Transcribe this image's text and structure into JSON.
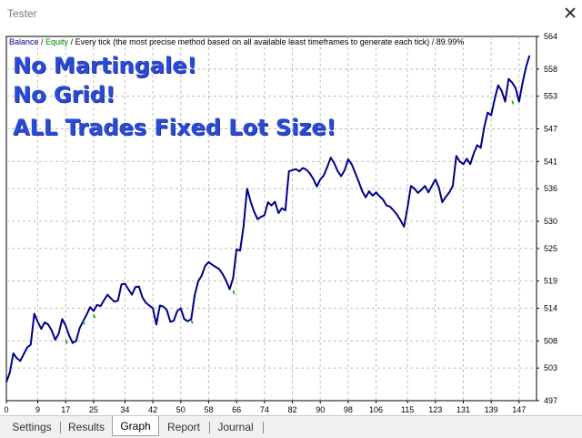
{
  "window": {
    "title": "Tester"
  },
  "header": {
    "balance_label": "Balance",
    "sep1": " / ",
    "equity_label": "Equity",
    "rest": " / Every tick (the most precise method based on all available least timeframes to generate each tick) / 89.99%"
  },
  "overlay": {
    "line1": "No Martingale!",
    "line2": "No Grid!",
    "line3": "ALL Trades Fixed Lot Size!"
  },
  "tabs": [
    {
      "label": "Settings",
      "active": false
    },
    {
      "label": "Results",
      "active": false
    },
    {
      "label": "Graph",
      "active": true
    },
    {
      "label": "Report",
      "active": false
    },
    {
      "label": "Journal",
      "active": false
    }
  ],
  "colors": {
    "balance": "#00008b",
    "equity": "#00a000",
    "grid": "#bdbdbd",
    "overlay_text": "#2b4bd6"
  },
  "chart_data": {
    "type": "line",
    "x_ticks": [
      "0",
      "9",
      "17",
      "25",
      "34",
      "42",
      "50",
      "58",
      "66",
      "74",
      "82",
      "90",
      "98",
      "106",
      "115",
      "123",
      "131",
      "139",
      "147"
    ],
    "y_ticks": [
      "497",
      "503",
      "508",
      "514",
      "519",
      "525",
      "530",
      "536",
      "541",
      "547",
      "553",
      "558",
      "564"
    ],
    "xlim": [
      0,
      152
    ],
    "ylim": [
      497,
      564
    ],
    "grid": true,
    "series": [
      {
        "name": "Balance",
        "x": [
          0,
          1,
          2,
          3,
          4,
          5,
          6,
          7,
          8,
          9,
          10,
          11,
          12,
          13,
          14,
          15,
          16,
          17,
          18,
          19,
          20,
          21,
          22,
          23,
          24,
          25,
          26,
          27,
          28,
          29,
          30,
          31,
          32,
          33,
          34,
          35,
          36,
          37,
          38,
          39,
          40,
          41,
          42,
          43,
          44,
          45,
          46,
          47,
          48,
          49,
          50,
          51,
          52,
          53,
          54,
          55,
          56,
          57,
          58,
          59,
          60,
          61,
          62,
          63,
          64,
          65,
          66,
          67,
          68,
          69,
          70,
          71,
          72,
          73,
          74,
          75,
          76,
          77,
          78,
          79,
          80,
          81,
          82,
          83,
          84,
          85,
          86,
          87,
          88,
          89,
          90,
          91,
          92,
          93,
          94,
          95,
          96,
          97,
          98,
          99,
          100,
          101,
          102,
          103,
          104,
          105,
          106,
          107,
          108,
          109,
          110,
          111,
          112,
          113,
          114,
          115,
          116,
          117,
          118,
          119,
          120,
          121,
          122,
          123,
          124,
          125,
          126,
          127,
          128,
          129,
          130,
          131,
          132,
          133,
          134,
          135,
          136,
          137,
          138,
          139,
          140,
          141,
          142,
          143,
          144,
          145,
          146,
          147,
          148,
          149,
          150
        ],
        "values": [
          500.4,
          502.2,
          505.7,
          504.8,
          504.3,
          505.6,
          506.8,
          507.3,
          513.0,
          511.5,
          510.2,
          511.4,
          511.0,
          509.9,
          508.2,
          509.3,
          512.0,
          510.8,
          509.0,
          507.6,
          508.0,
          510.3,
          511.6,
          512.8,
          514.2,
          513.5,
          514.6,
          514.4,
          515.5,
          516.5,
          515.8,
          515.2,
          515.4,
          518.4,
          518.5,
          517.5,
          516.5,
          517.9,
          518.0,
          516.0,
          515.0,
          514.5,
          514.0,
          511.0,
          514.5,
          514.3,
          513.7,
          511.5,
          511.7,
          513.5,
          514.0,
          512.0,
          511.6,
          512.0,
          516.4,
          519.0,
          520.0,
          521.8,
          522.5,
          522.0,
          521.6,
          521.2,
          520.3,
          519.1,
          517.5,
          519.5,
          524.8,
          524.6,
          529.0,
          536.0,
          533.7,
          531.8,
          530.4,
          530.8,
          531.1,
          533.5,
          532.9,
          533.6,
          531.5,
          532.4,
          532.0,
          539.2,
          539.4,
          539.6,
          539.2,
          539.8,
          539.5,
          538.8,
          537.8,
          536.4,
          537.7,
          538.4,
          540.0,
          541.7,
          540.7,
          539.2,
          538.3,
          539.4,
          541.4,
          540.5,
          538.9,
          537.3,
          535.6,
          534.4,
          535.5,
          534.7,
          535.3,
          534.6,
          534.0,
          532.9,
          532.7,
          532.0,
          531.2,
          530.2,
          529.0,
          532.5,
          536.5,
          536.0,
          535.2,
          535.8,
          536.5,
          535.3,
          536.5,
          537.7,
          536.2,
          533.5,
          534.5,
          535.3,
          536.5,
          542.0,
          541.0,
          540.5,
          541.5,
          540.5,
          542.5,
          544.0,
          543.5,
          547.3,
          550.0,
          549.5,
          552.5,
          555.0,
          554.0,
          552.0,
          556.2,
          555.5,
          554.5,
          552.0,
          555.5,
          558.4,
          560.5
        ]
      },
      {
        "name": "Equity",
        "x": [
          17,
          22,
          25,
          53,
          65,
          145
        ],
        "values": [
          507.5,
          511.0,
          512.2,
          511.2,
          516.6,
          551.5
        ]
      }
    ]
  }
}
